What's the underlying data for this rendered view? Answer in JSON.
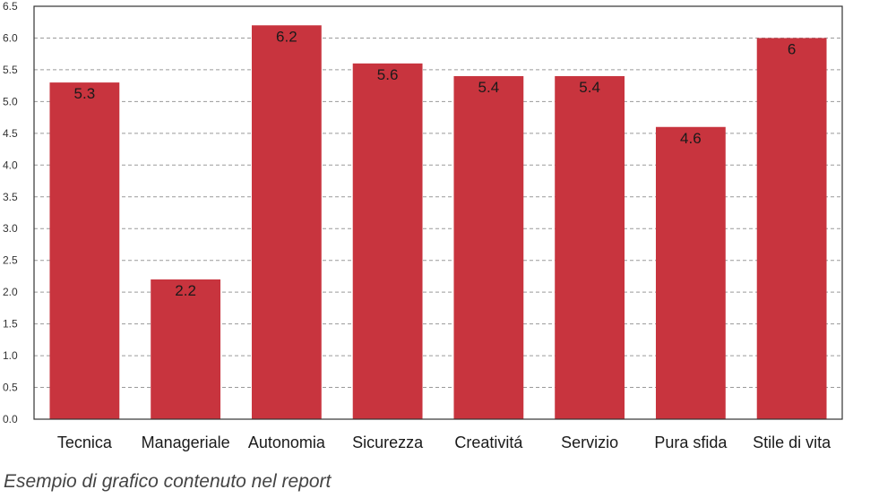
{
  "chart_data": {
    "type": "bar",
    "categories": [
      "Tecnica",
      "Manageriale",
      "Autonomia",
      "Sicurezza",
      "Creativitá",
      "Servizio",
      "Pura sfida",
      "Stile di vita"
    ],
    "values": [
      5.3,
      2.2,
      6.2,
      5.6,
      5.4,
      5.4,
      4.6,
      6
    ],
    "data_labels": [
      "5.3",
      "2.2",
      "6.2",
      "5.6",
      "5.4",
      "5.4",
      "4.6",
      "6"
    ],
    "ylim": [
      0,
      6.5
    ],
    "yticks": [
      "0.0",
      "0.5",
      "1.0",
      "1.5",
      "2.0",
      "2.5",
      "3.0",
      "3.5",
      "4.0",
      "4.5",
      "5.0",
      "5.5",
      "6.0",
      "6.5"
    ],
    "grid": true,
    "legend": "none",
    "bar_color": "#c8343e",
    "grid_color": "#9a9a9a",
    "axis_color": "#333333"
  },
  "caption": "Esempio di grafico contenuto nel report"
}
